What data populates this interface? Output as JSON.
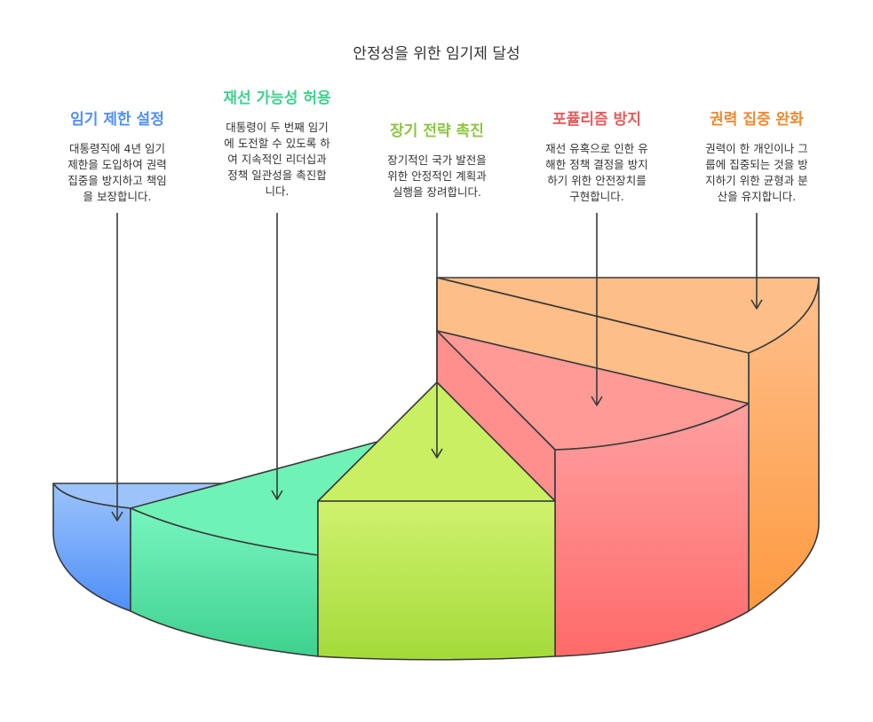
{
  "title": "안정성을 위한 임기제 달성",
  "items": [
    {
      "heading": "임기 제한 설정",
      "lines": [
        "대통령직에 4년 임기",
        "제한을 도입하여 권력",
        "집중을 방지하고 책임",
        "을 보장합니다."
      ],
      "color": "#4f8ff7"
    },
    {
      "heading": "재선 가능성 허용",
      "lines": [
        "대통령이 두 번째 임기",
        "에 도전할 수 있도록 하",
        "여 지속적인 리더십과",
        "정책 일관성을 촉진합",
        "니다."
      ],
      "color": "#3ed18e"
    },
    {
      "heading": "장기 전략 촉진",
      "lines": [
        "장기적인 국가 발전을",
        "위한 안정적인 계획과",
        "실행을 장려합니다."
      ],
      "color": "#8cc63f"
    },
    {
      "heading": "포퓰리즘 방지",
      "lines": [
        "재선 유혹으로 인한 유",
        "해한 정책 결정을 방지",
        "하기 위한 안전장치를",
        "구현합니다."
      ],
      "color": "#ea5a5a"
    },
    {
      "heading": "권력 집중 완화",
      "lines": [
        "권력이 한 개인이나 그",
        "룹에 집중되는 것을 방",
        "지하기 위한 균형과 분",
        "산을 유지합니다."
      ],
      "color": "#f08a30"
    }
  ]
}
